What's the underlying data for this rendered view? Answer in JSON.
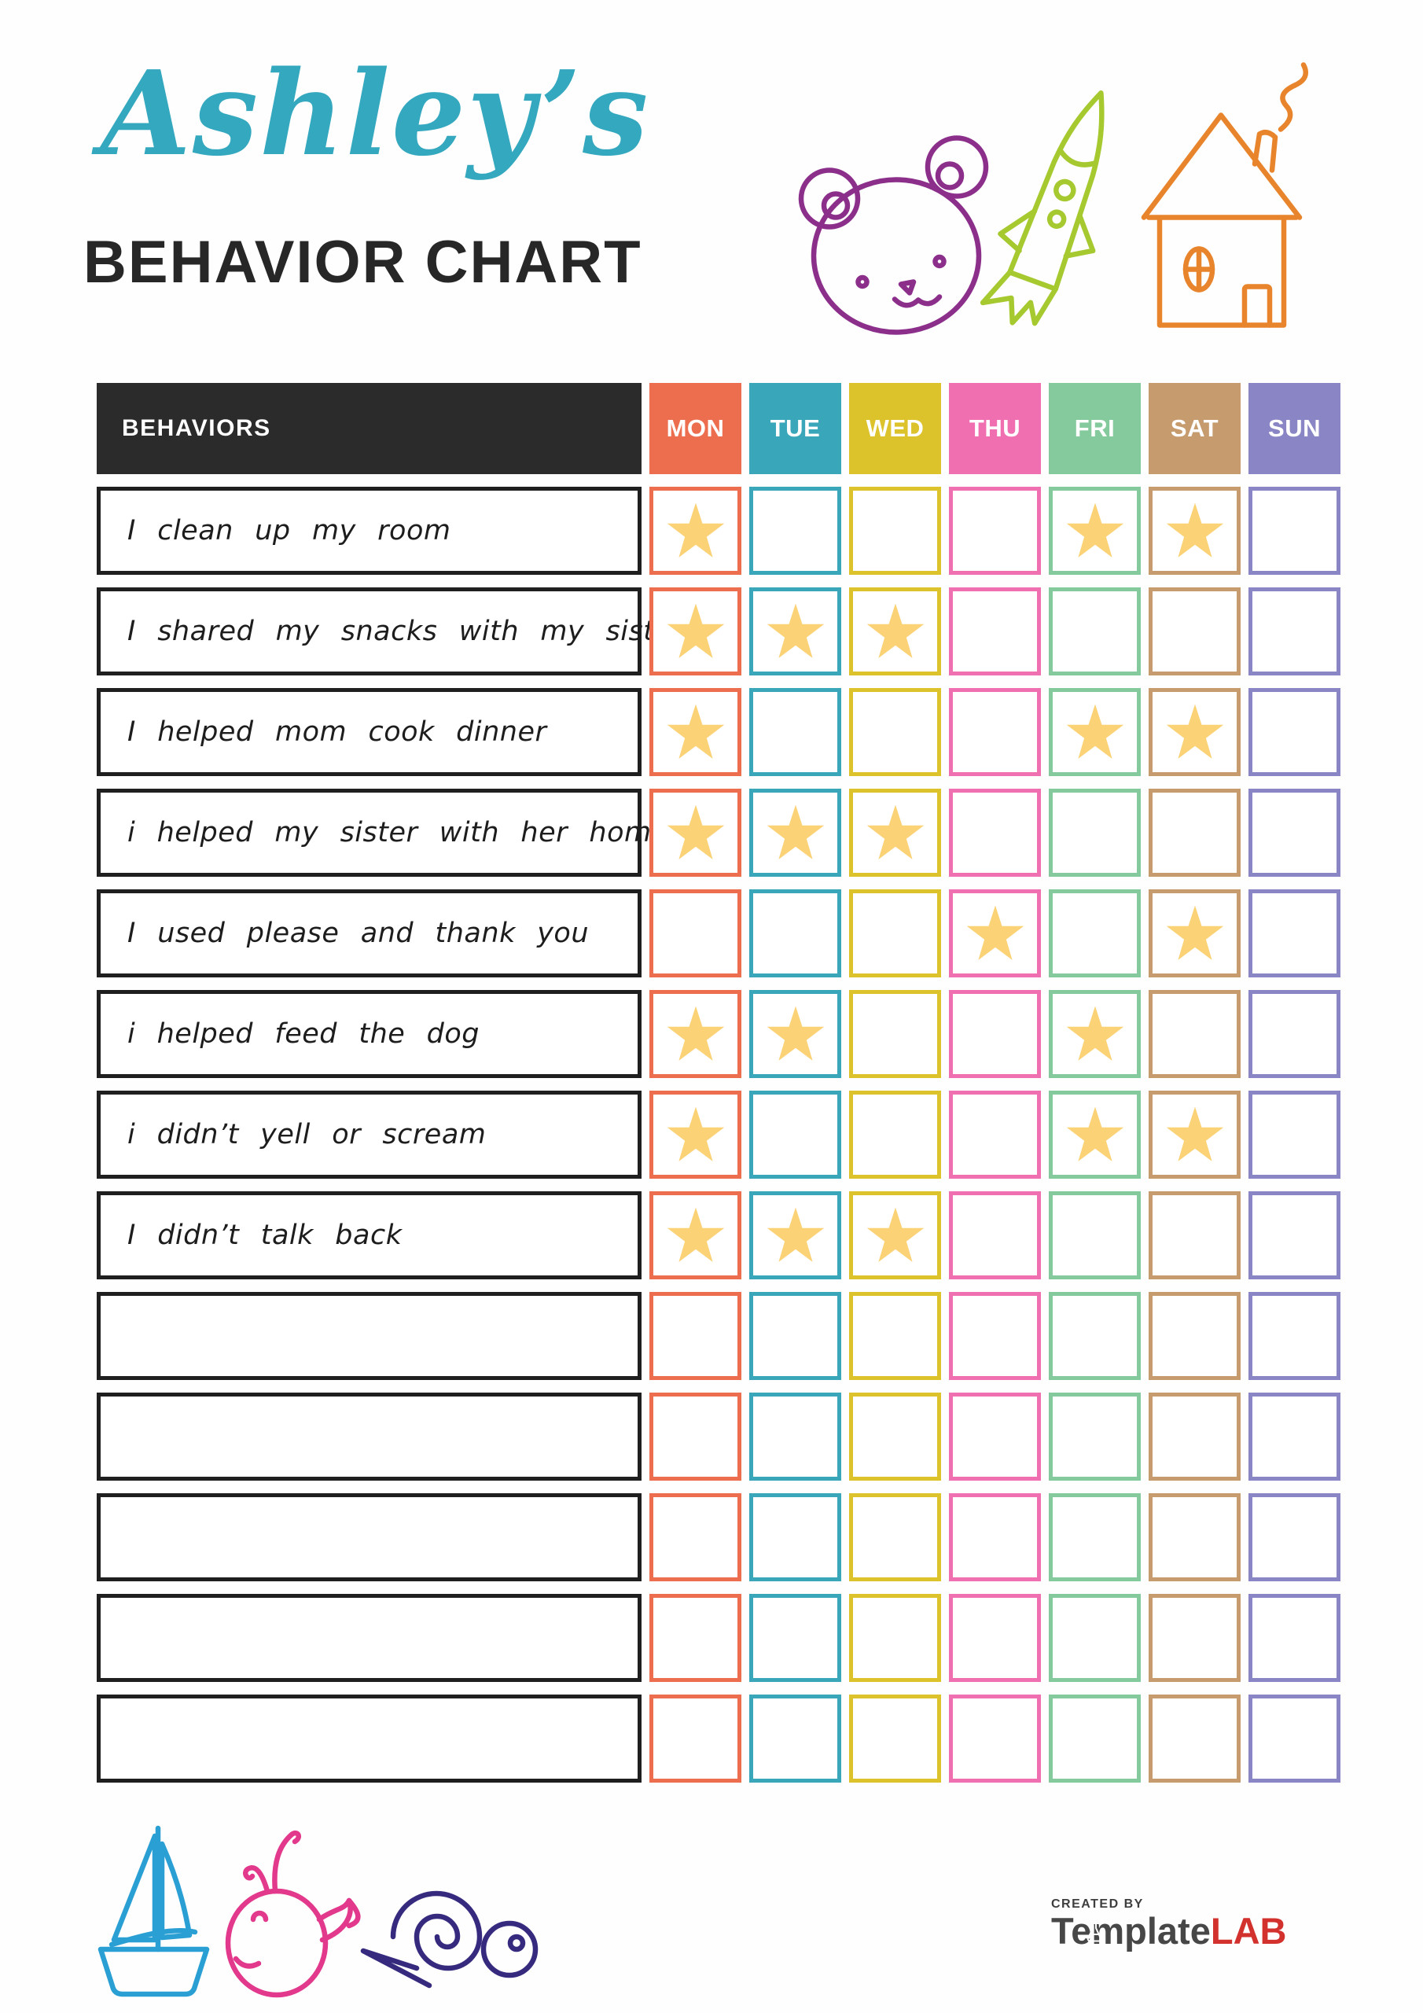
{
  "title": {
    "script": "Ashley’s",
    "main": "BEHAVIOR CHART",
    "script_color": "#34a8be",
    "main_color": "#272727"
  },
  "decorations": {
    "top": [
      {
        "name": "bear-doodle",
        "color": "#8b2f8b"
      },
      {
        "name": "rocket-doodle",
        "color": "#a5c92f"
      },
      {
        "name": "house-doodle",
        "color": "#e8842b"
      }
    ],
    "bottom": [
      {
        "name": "sailboat-doodle",
        "color": "#2a9fd4"
      },
      {
        "name": "whale-doodle",
        "color": "#e2398c"
      },
      {
        "name": "snail-doodle",
        "color": "#352a7e"
      }
    ]
  },
  "table": {
    "behaviors_header": "BEHAVIORS",
    "header_bg": "#2b2b2b",
    "row_border": "#1f1f1f",
    "star_color": "#fbd276",
    "star_icon": "star-icon",
    "days": [
      {
        "label": "MON",
        "color": "#ed6e4f"
      },
      {
        "label": "TUE",
        "color": "#3aa6ba"
      },
      {
        "label": "WED",
        "color": "#dcc32b"
      },
      {
        "label": "THU",
        "color": "#ef6fb0"
      },
      {
        "label": "FRI",
        "color": "#84ca9c"
      },
      {
        "label": "SAT",
        "color": "#c69b6d"
      },
      {
        "label": "SUN",
        "color": "#8a86c5"
      }
    ],
    "rows": [
      {
        "behavior": "I clean up my room",
        "stars": [
          "MON",
          "FRI",
          "SAT"
        ]
      },
      {
        "behavior": "I shared my snacks with my sister",
        "stars": [
          "MON",
          "TUE",
          "WED"
        ]
      },
      {
        "behavior": "I helped mom cook dinner",
        "stars": [
          "MON",
          "FRI",
          "SAT"
        ]
      },
      {
        "behavior": "i helped my sister with her homework",
        "stars": [
          "MON",
          "TUE",
          "WED"
        ]
      },
      {
        "behavior": "I used please and thank you",
        "stars": [
          "THU",
          "SAT"
        ]
      },
      {
        "behavior": "i helped feed the dog",
        "stars": [
          "MON",
          "TUE",
          "FRI"
        ]
      },
      {
        "behavior": "i didn’t yell or scream",
        "stars": [
          "MON",
          "FRI",
          "SAT"
        ]
      },
      {
        "behavior": "I didn’t talk back",
        "stars": [
          "MON",
          "TUE",
          "WED"
        ]
      },
      {
        "behavior": "",
        "stars": []
      },
      {
        "behavior": "",
        "stars": []
      },
      {
        "behavior": "",
        "stars": []
      },
      {
        "behavior": "",
        "stars": []
      },
      {
        "behavior": "",
        "stars": []
      }
    ]
  },
  "footer": {
    "created_by": "CREATED BY",
    "brand_gray": "Template",
    "brand_red": "LAB",
    "brand_red_color": "#d2312d"
  }
}
